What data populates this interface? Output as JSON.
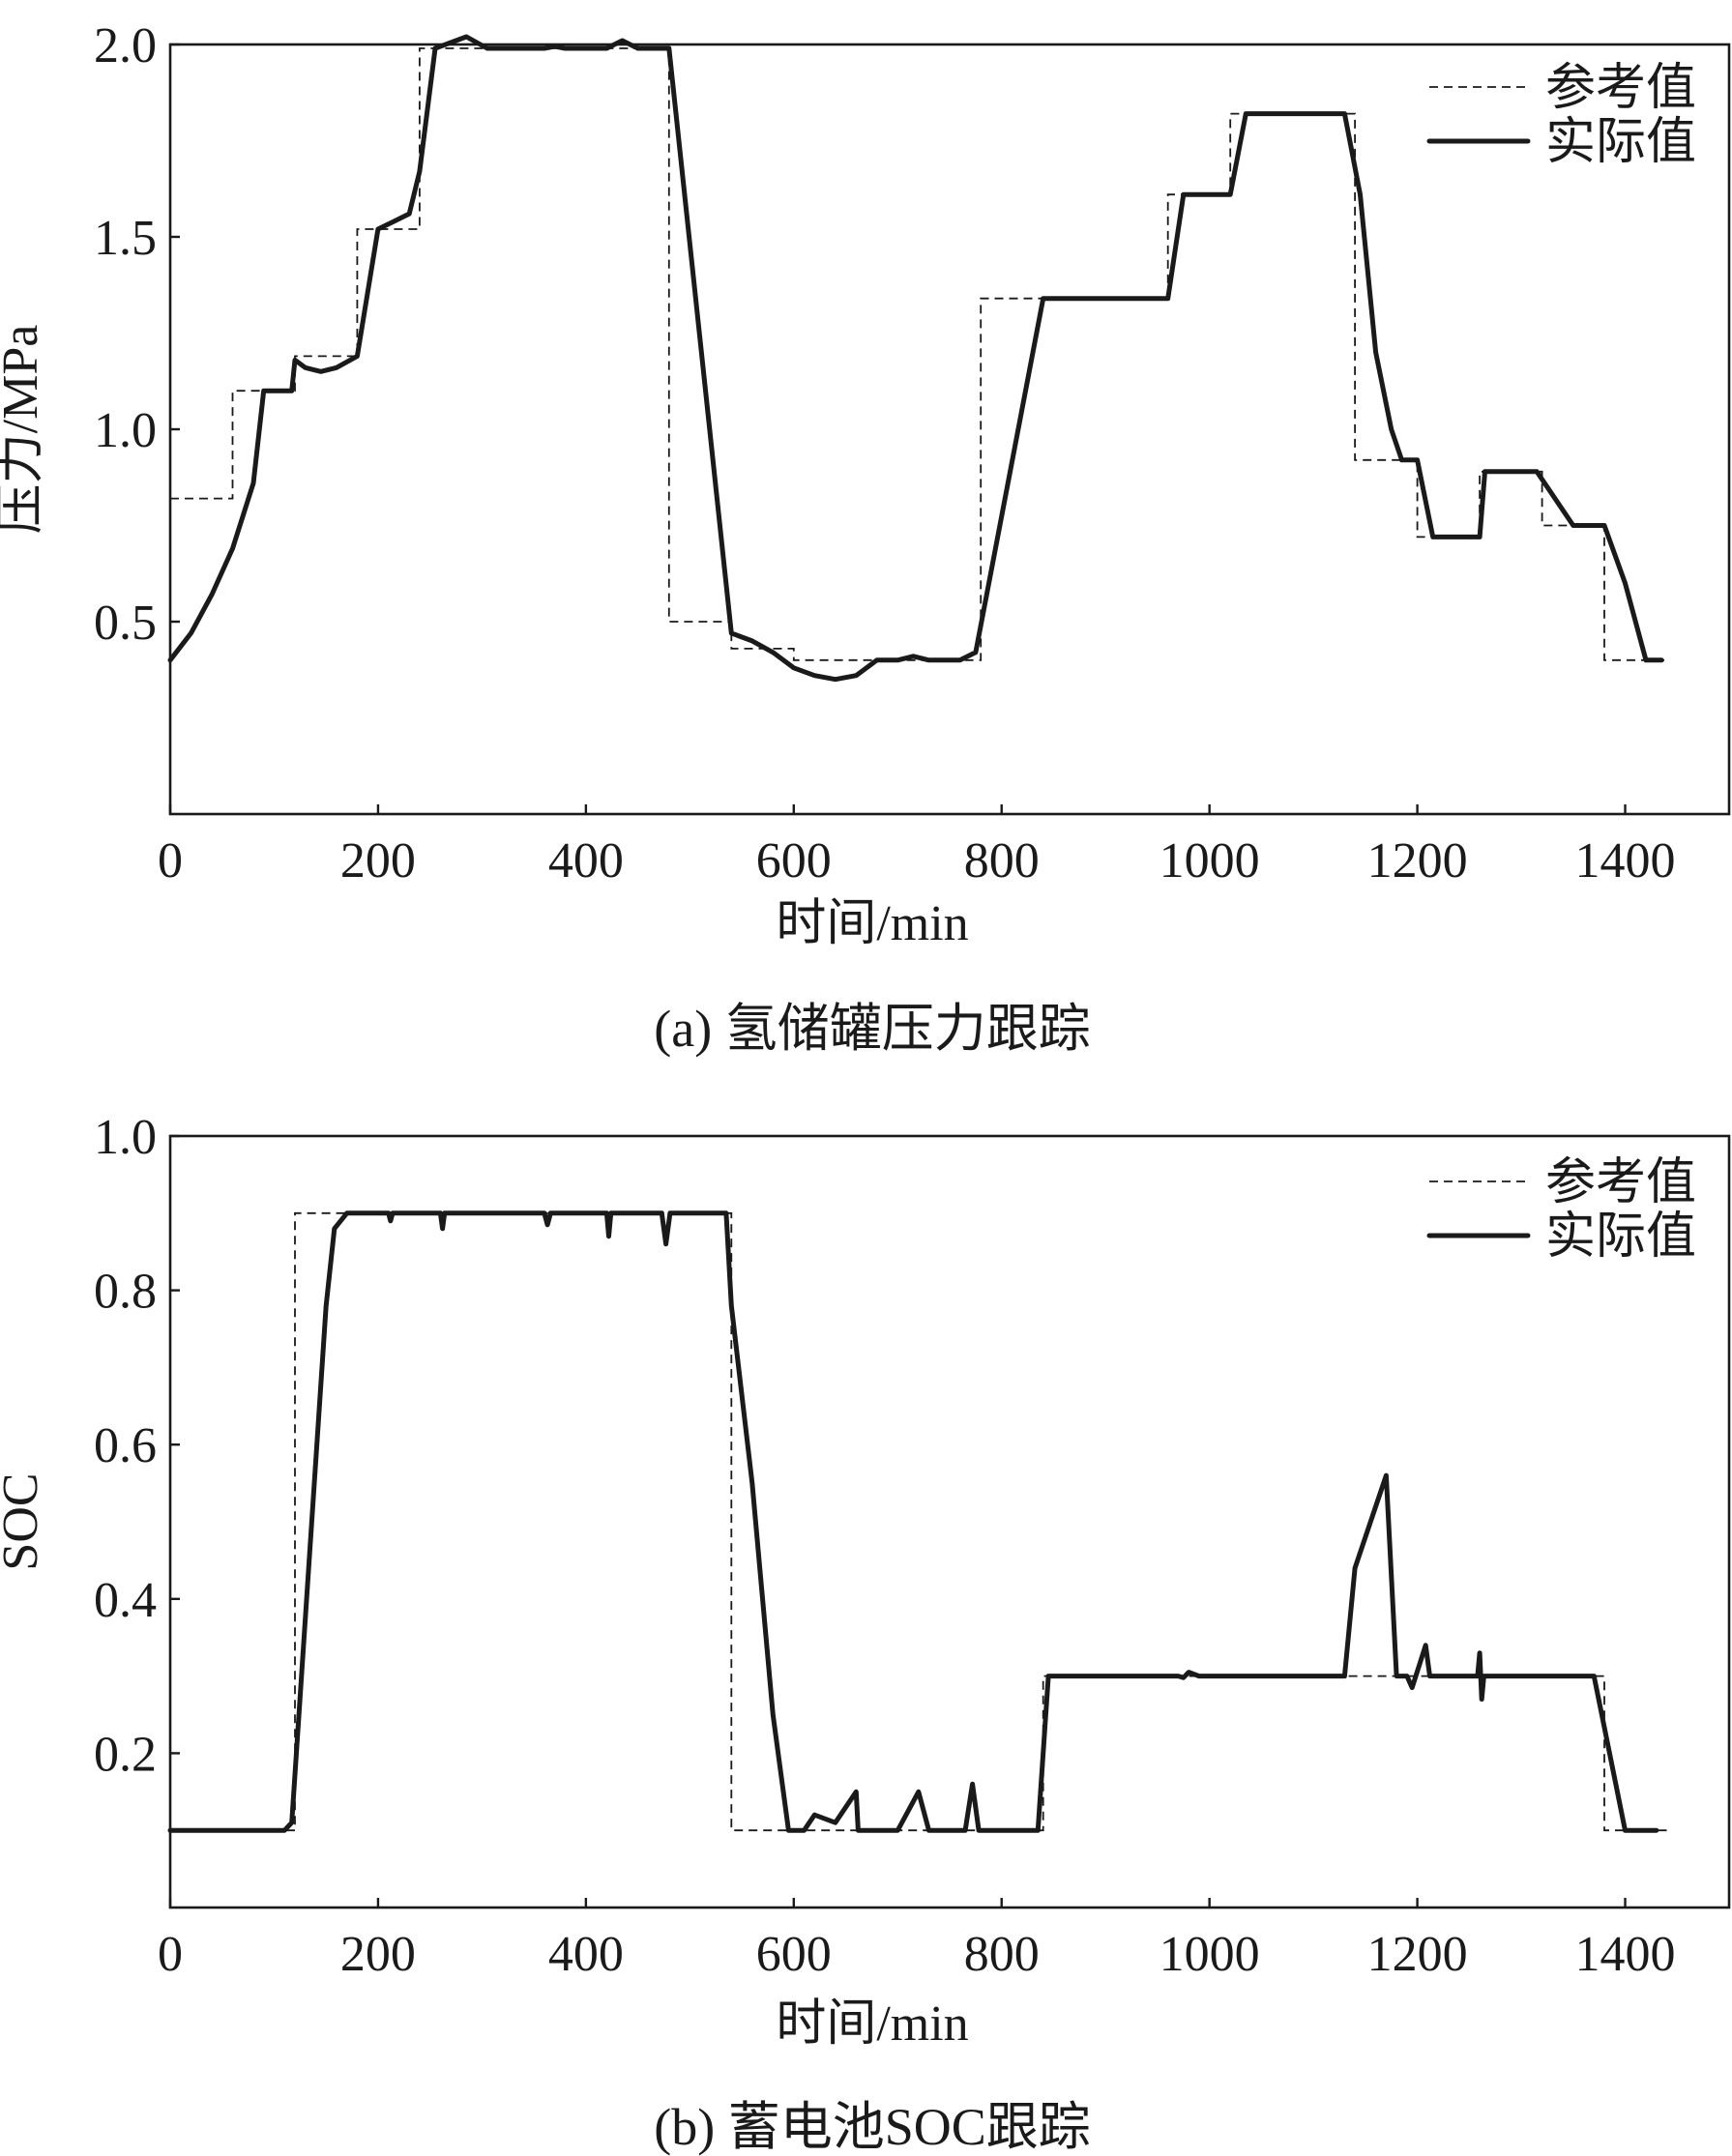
{
  "chart_data": [
    {
      "type": "line",
      "caption": "(a) 氢储罐压力跟踪",
      "xlabel": "时间/min",
      "ylabel": "压力/MPa",
      "xlim": [
        0,
        1500
      ],
      "ylim": [
        0,
        2.0
      ],
      "xticks": [
        0,
        200,
        400,
        600,
        800,
        1000,
        1200,
        1400
      ],
      "xtick_labels": [
        "0",
        "200",
        "400",
        "600",
        "800",
        "1000",
        "1200",
        "1400"
      ],
      "yticks": [
        0.5,
        1.0,
        1.5,
        2.0
      ],
      "ytick_labels": [
        "0.5",
        "1.0",
        "1.5",
        "2.0"
      ],
      "grid": false,
      "legend_position": "top-right",
      "series": [
        {
          "name": "参考值",
          "style": "dashed",
          "points": [
            [
              0,
              0.82
            ],
            [
              60,
              0.82
            ],
            [
              60,
              1.1
            ],
            [
              120,
              1.1
            ],
            [
              120,
              1.19
            ],
            [
              180,
              1.19
            ],
            [
              180,
              1.52
            ],
            [
              240,
              1.52
            ],
            [
              240,
              1.99
            ],
            [
              480,
              1.99
            ],
            [
              480,
              0.5
            ],
            [
              540,
              0.5
            ],
            [
              540,
              0.43
            ],
            [
              600,
              0.43
            ],
            [
              600,
              0.4
            ],
            [
              780,
              0.4
            ],
            [
              780,
              1.34
            ],
            [
              960,
              1.34
            ],
            [
              960,
              1.61
            ],
            [
              1020,
              1.61
            ],
            [
              1020,
              1.82
            ],
            [
              1140,
              1.82
            ],
            [
              1140,
              0.92
            ],
            [
              1200,
              0.92
            ],
            [
              1200,
              0.72
            ],
            [
              1260,
              0.72
            ],
            [
              1260,
              0.89
            ],
            [
              1320,
              0.89
            ],
            [
              1320,
              0.75
            ],
            [
              1380,
              0.75
            ],
            [
              1380,
              0.4
            ],
            [
              1440,
              0.4
            ]
          ]
        },
        {
          "name": "实际值",
          "style": "solid",
          "points": [
            [
              0,
              0.4
            ],
            [
              20,
              0.47
            ],
            [
              40,
              0.57
            ],
            [
              60,
              0.69
            ],
            [
              80,
              0.86
            ],
            [
              90,
              1.1
            ],
            [
              117,
              1.1
            ],
            [
              120,
              1.18
            ],
            [
              130,
              1.16
            ],
            [
              145,
              1.15
            ],
            [
              160,
              1.16
            ],
            [
              180,
              1.19
            ],
            [
              200,
              1.52
            ],
            [
              215,
              1.54
            ],
            [
              230,
              1.56
            ],
            [
              240,
              1.67
            ],
            [
              255,
              1.99
            ],
            [
              285,
              2.02
            ],
            [
              305,
              1.99
            ],
            [
              360,
              1.99
            ],
            [
              370,
              1.995
            ],
            [
              380,
              1.99
            ],
            [
              420,
              1.99
            ],
            [
              435,
              2.01
            ],
            [
              450,
              1.99
            ],
            [
              480,
              1.99
            ],
            [
              540,
              0.47
            ],
            [
              560,
              0.45
            ],
            [
              580,
              0.42
            ],
            [
              600,
              0.38
            ],
            [
              620,
              0.36
            ],
            [
              640,
              0.35
            ],
            [
              660,
              0.36
            ],
            [
              680,
              0.4
            ],
            [
              700,
              0.4
            ],
            [
              715,
              0.41
            ],
            [
              730,
              0.4
            ],
            [
              760,
              0.4
            ],
            [
              775,
              0.42
            ],
            [
              840,
              1.34
            ],
            [
              960,
              1.34
            ],
            [
              975,
              1.61
            ],
            [
              1020,
              1.61
            ],
            [
              1035,
              1.82
            ],
            [
              1130,
              1.82
            ],
            [
              1145,
              1.61
            ],
            [
              1160,
              1.2
            ],
            [
              1175,
              1.0
            ],
            [
              1185,
              0.92
            ],
            [
              1200,
              0.92
            ],
            [
              1215,
              0.72
            ],
            [
              1260,
              0.72
            ],
            [
              1265,
              0.89
            ],
            [
              1315,
              0.89
            ],
            [
              1350,
              0.75
            ],
            [
              1380,
              0.75
            ],
            [
              1400,
              0.6
            ],
            [
              1420,
              0.4
            ],
            [
              1435,
              0.4
            ]
          ]
        }
      ]
    },
    {
      "type": "line",
      "caption": "(b) 蓄电池SOC跟踪",
      "xlabel": "时间/min",
      "ylabel": "SOC",
      "xlim": [
        0,
        1500
      ],
      "ylim": [
        0,
        1.0
      ],
      "xticks": [
        0,
        200,
        400,
        600,
        800,
        1000,
        1200,
        1400
      ],
      "xtick_labels": [
        "0",
        "200",
        "400",
        "600",
        "800",
        "1000",
        "1200",
        "1400"
      ],
      "yticks": [
        0.2,
        0.4,
        0.6,
        0.8,
        1.0
      ],
      "ytick_labels": [
        "0.2",
        "0.4",
        "0.6",
        "0.8",
        "1.0"
      ],
      "grid": false,
      "legend_position": "top-right",
      "series": [
        {
          "name": "参考值",
          "style": "dashed",
          "points": [
            [
              0,
              0.1
            ],
            [
              120,
              0.1
            ],
            [
              120,
              0.9
            ],
            [
              540,
              0.9
            ],
            [
              540,
              0.1
            ],
            [
              840,
              0.1
            ],
            [
              840,
              0.3
            ],
            [
              1380,
              0.3
            ],
            [
              1380,
              0.1
            ],
            [
              1440,
              0.1
            ]
          ]
        },
        {
          "name": "实际值",
          "style": "solid",
          "points": [
            [
              0,
              0.1
            ],
            [
              110,
              0.1
            ],
            [
              117,
              0.11
            ],
            [
              150,
              0.78
            ],
            [
              158,
              0.88
            ],
            [
              170,
              0.9
            ],
            [
              210,
              0.9
            ],
            [
              212,
              0.89
            ],
            [
              214,
              0.9
            ],
            [
              260,
              0.9
            ],
            [
              262,
              0.88
            ],
            [
              264,
              0.9
            ],
            [
              360,
              0.9
            ],
            [
              363,
              0.885
            ],
            [
              366,
              0.9
            ],
            [
              420,
              0.9
            ],
            [
              422,
              0.87
            ],
            [
              424,
              0.9
            ],
            [
              473,
              0.9
            ],
            [
              477,
              0.86
            ],
            [
              481,
              0.9
            ],
            [
              535,
              0.9
            ],
            [
              540,
              0.78
            ],
            [
              560,
              0.55
            ],
            [
              580,
              0.25
            ],
            [
              595,
              0.1
            ],
            [
              610,
              0.1
            ],
            [
              620,
              0.12
            ],
            [
              640,
              0.11
            ],
            [
              650,
              0.13
            ],
            [
              660,
              0.15
            ],
            [
              662,
              0.1
            ],
            [
              700,
              0.1
            ],
            [
              720,
              0.15
            ],
            [
              730,
              0.1
            ],
            [
              765,
              0.1
            ],
            [
              772,
              0.16
            ],
            [
              778,
              0.1
            ],
            [
              835,
              0.1
            ],
            [
              845,
              0.3
            ],
            [
              970,
              0.3
            ],
            [
              975,
              0.298
            ],
            [
              980,
              0.305
            ],
            [
              990,
              0.3
            ],
            [
              1130,
              0.3
            ],
            [
              1140,
              0.44
            ],
            [
              1170,
              0.56
            ],
            [
              1180,
              0.3
            ],
            [
              1190,
              0.3
            ],
            [
              1195,
              0.285
            ],
            [
              1208,
              0.34
            ],
            [
              1212,
              0.3
            ],
            [
              1258,
              0.3
            ],
            [
              1260,
              0.33
            ],
            [
              1262,
              0.27
            ],
            [
              1264,
              0.3
            ],
            [
              1370,
              0.3
            ],
            [
              1385,
              0.2
            ],
            [
              1400,
              0.1
            ],
            [
              1430,
              0.1
            ]
          ]
        }
      ]
    }
  ]
}
